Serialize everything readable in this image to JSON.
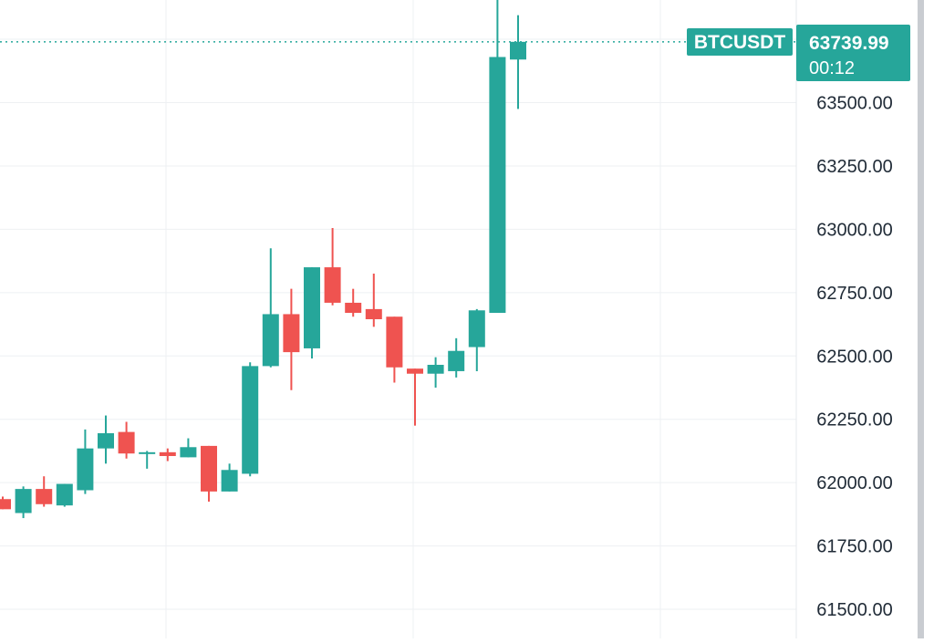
{
  "symbol_label": "BTCUSDT",
  "price_badge": {
    "price": "63739.99",
    "countdown": "00:12"
  },
  "colors": {
    "up": "#26a69a",
    "down": "#ef5350",
    "grid": "#eef0f3",
    "axis_text": "#1f2a36",
    "price_line": "#26a69a"
  },
  "chart_data": {
    "type": "candlestick",
    "ylim": [
      61385,
      63905
    ],
    "y_ticks": [
      61500,
      61750,
      62000,
      62250,
      62500,
      62750,
      63000,
      63250,
      63500
    ],
    "y_tick_labels": [
      "61500.00",
      "61750.00",
      "62000.00",
      "62250.00",
      "62500.00",
      "62750.00",
      "63000.00",
      "63250.00",
      "63500.00"
    ],
    "last_price": 63739.99,
    "candles": [
      {
        "open": 61935,
        "high": 61945,
        "low": 61895,
        "close": 61895
      },
      {
        "open": 61880,
        "high": 61985,
        "low": 61860,
        "close": 61975
      },
      {
        "open": 61975,
        "high": 62025,
        "low": 61905,
        "close": 61915
      },
      {
        "open": 61910,
        "high": 61995,
        "low": 61905,
        "close": 61995
      },
      {
        "open": 61970,
        "high": 62210,
        "low": 61955,
        "close": 62135
      },
      {
        "open": 62135,
        "high": 62265,
        "low": 62075,
        "close": 62195
      },
      {
        "open": 62200,
        "high": 62240,
        "low": 62095,
        "close": 62115
      },
      {
        "open": 62115,
        "high": 62125,
        "low": 62055,
        "close": 62120
      },
      {
        "open": 62120,
        "high": 62135,
        "low": 62085,
        "close": 62105
      },
      {
        "open": 62100,
        "high": 62175,
        "low": 62100,
        "close": 62140
      },
      {
        "open": 62145,
        "high": 62145,
        "low": 61925,
        "close": 61965
      },
      {
        "open": 61965,
        "high": 62075,
        "low": 61965,
        "close": 62050
      },
      {
        "open": 62035,
        "high": 62475,
        "low": 62025,
        "close": 62460
      },
      {
        "open": 62460,
        "high": 62925,
        "low": 62455,
        "close": 62665
      },
      {
        "open": 62665,
        "high": 62765,
        "low": 62365,
        "close": 62515
      },
      {
        "open": 62530,
        "high": 62850,
        "low": 62490,
        "close": 62850
      },
      {
        "open": 62850,
        "high": 63005,
        "low": 62700,
        "close": 62710
      },
      {
        "open": 62710,
        "high": 62765,
        "low": 62655,
        "close": 62670
      },
      {
        "open": 62685,
        "high": 62825,
        "low": 62615,
        "close": 62645
      },
      {
        "open": 62655,
        "high": 62655,
        "low": 62395,
        "close": 62455
      },
      {
        "open": 62450,
        "high": 62450,
        "low": 62225,
        "close": 62430
      },
      {
        "open": 62430,
        "high": 62495,
        "low": 62375,
        "close": 62465
      },
      {
        "open": 62440,
        "high": 62570,
        "low": 62415,
        "close": 62520
      },
      {
        "open": 62535,
        "high": 62685,
        "low": 62440,
        "close": 62680
      },
      {
        "open": 62670,
        "high": 63905,
        "low": 62670,
        "close": 63680
      },
      {
        "open": 63670,
        "high": 63845,
        "low": 63475,
        "close": 63739.99
      }
    ]
  }
}
